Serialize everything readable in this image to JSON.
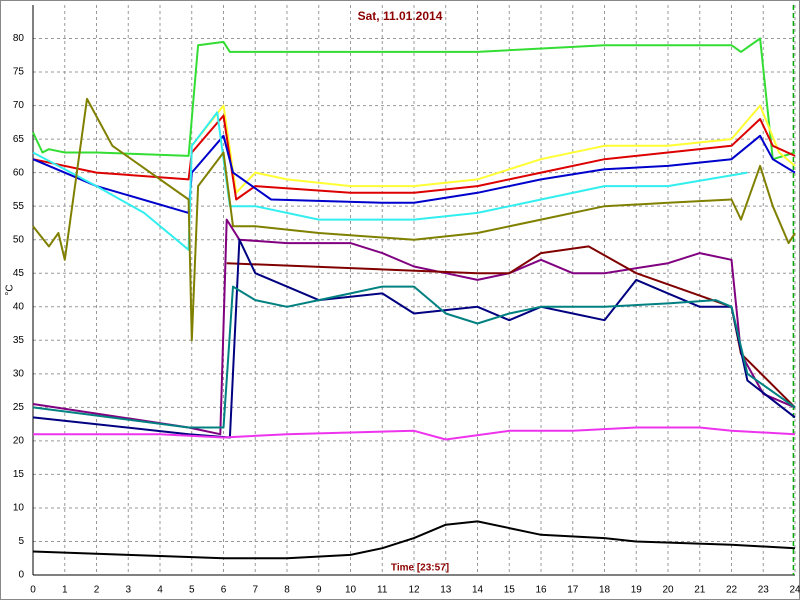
{
  "chart_data": {
    "type": "line",
    "title": "Sat, 11.01.2014",
    "x_label": "Time [23:57]",
    "y_label": "°C",
    "xlim": [
      0,
      24
    ],
    "ylim": [
      0,
      85
    ],
    "xticks": [
      0,
      1,
      2,
      3,
      4,
      5,
      6,
      7,
      8,
      9,
      10,
      11,
      12,
      13,
      14,
      15,
      16,
      17,
      18,
      19,
      20,
      21,
      22,
      23,
      24
    ],
    "yticks": [
      0,
      5,
      10,
      15,
      20,
      25,
      30,
      35,
      40,
      45,
      50,
      55,
      60,
      65,
      70,
      75,
      80
    ],
    "grid": true,
    "marker_x": 23.95,
    "marker_color": "#00aa00",
    "series": [
      {
        "color": "#33dd33",
        "x": [
          0,
          0.3,
          0.5,
          1,
          2,
          4.9,
          5.2,
          6,
          6.2,
          10,
          14,
          18,
          22,
          22.3,
          22.9,
          23.3,
          24
        ],
        "values": [
          66,
          63,
          63.5,
          63,
          63,
          62.5,
          79,
          79.5,
          78,
          78,
          78,
          79,
          79,
          78,
          80,
          62,
          63
        ]
      },
      {
        "color": "#ffff33",
        "x": [
          5,
          6,
          6.4,
          7,
          8,
          10,
          12,
          14,
          16,
          18,
          20,
          22,
          22.9,
          23.5,
          24
        ],
        "values": [
          64,
          70,
          57,
          60,
          59,
          58,
          58,
          59,
          62,
          64,
          64,
          65,
          70,
          63,
          61
        ]
      },
      {
        "color": "#dd0000",
        "x": [
          0,
          2,
          4.9,
          5,
          6,
          6.4,
          7,
          10,
          12,
          14,
          16,
          18,
          20,
          22,
          22.9,
          23.3,
          24
        ],
        "values": [
          62,
          60,
          59,
          63,
          68.5,
          56,
          58,
          57,
          57,
          58,
          60,
          62,
          63,
          64,
          68,
          64,
          62.5
        ]
      },
      {
        "color": "#0000cc",
        "x": [
          0,
          2,
          4.9,
          5,
          6,
          6.3,
          7.5,
          11,
          12,
          14,
          16,
          18,
          20,
          22,
          22.9,
          23.3,
          24
        ],
        "values": [
          62,
          58,
          54,
          60,
          65.5,
          60,
          56,
          55.5,
          55.5,
          57,
          59,
          60.5,
          61,
          62,
          65.5,
          62,
          60
        ]
      },
      {
        "color": "#33eeee",
        "x": [
          0,
          2,
          3.5,
          4.9,
          5,
          5.8,
          6.2,
          7,
          9,
          12,
          14,
          16,
          18,
          20,
          22.5
        ],
        "values": [
          63,
          58,
          54,
          48.5,
          64,
          69,
          55,
          55,
          53,
          53,
          54,
          56,
          58,
          58,
          60
        ]
      },
      {
        "color": "#808000",
        "x": [
          0,
          0.5,
          0.8,
          1,
          1.7,
          2.5,
          4.9,
          5,
          5.2,
          6,
          6.3,
          7,
          9,
          12,
          14,
          16,
          18,
          20,
          22,
          22.3,
          22.9,
          23.3,
          23.8,
          24
        ],
        "values": [
          52,
          49,
          51,
          47,
          71,
          64,
          56,
          35,
          58,
          63,
          52,
          52,
          51,
          50,
          51,
          53,
          55,
          55.5,
          56,
          53,
          61,
          55,
          49.5,
          51
        ]
      },
      {
        "color": "#800080",
        "x": [
          0,
          4.9,
          5.9,
          6.1,
          6.5,
          8,
          10,
          11,
          12,
          13,
          14,
          15,
          16,
          17,
          18,
          20,
          21,
          22,
          22.3,
          23,
          24
        ],
        "values": [
          25.5,
          22,
          21,
          53,
          50,
          49.5,
          49.5,
          48,
          46,
          45,
          44,
          45,
          47,
          45,
          45,
          46.5,
          48,
          47,
          33,
          27,
          25
        ]
      },
      {
        "color": "#800000",
        "x": [
          6.1,
          14,
          15,
          16,
          17.5,
          19,
          22,
          22.3,
          24
        ],
        "values": [
          46.5,
          45,
          45,
          48,
          49,
          45,
          40,
          33,
          25
        ]
      },
      {
        "color": "#000080",
        "x": [
          0,
          4.9,
          6.2,
          6.5,
          7,
          8,
          9,
          11,
          12,
          14,
          15,
          16,
          17,
          18,
          19,
          20,
          21,
          22,
          22.5,
          24
        ],
        "values": [
          23.5,
          21,
          20.5,
          50,
          45,
          43,
          41,
          42,
          39,
          40,
          38,
          40,
          39,
          38,
          44,
          42,
          40,
          40,
          29,
          23.5
        ]
      },
      {
        "color": "#008080",
        "x": [
          0,
          4.9,
          6,
          6.3,
          7,
          8,
          9,
          10,
          11,
          12,
          13,
          14,
          15,
          16,
          18,
          20,
          21.5,
          22,
          22.5,
          24
        ],
        "values": [
          25,
          22,
          22,
          43,
          41,
          40,
          41,
          42,
          43,
          43,
          39,
          37.5,
          39,
          40,
          40,
          40.5,
          41,
          40,
          30,
          25
        ]
      },
      {
        "color": "#ee33ee",
        "x": [
          0,
          4,
          6,
          8,
          12,
          13,
          15,
          17,
          19,
          21,
          22,
          24
        ],
        "values": [
          21,
          21,
          20.5,
          21,
          21.5,
          20.2,
          21.5,
          21.5,
          22,
          22,
          21.5,
          21
        ]
      },
      {
        "color": "#000000",
        "x": [
          0,
          3,
          6,
          8,
          10,
          11,
          12,
          13,
          14,
          15,
          16,
          18,
          19,
          22,
          24
        ],
        "values": [
          3.5,
          3,
          2.5,
          2.5,
          3,
          4,
          5.5,
          7.5,
          8,
          7,
          6,
          5.5,
          5,
          4.5,
          4
        ]
      }
    ]
  }
}
